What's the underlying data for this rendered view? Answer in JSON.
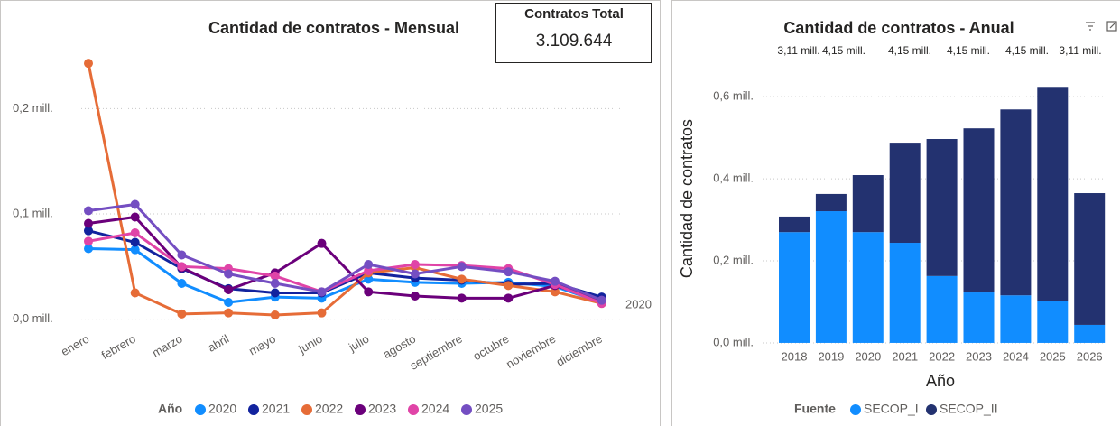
{
  "chart_data": [
    {
      "type": "line",
      "title": "Cantidad de contratos - Mensual",
      "categories": [
        "enero",
        "febrero",
        "marzo",
        "abril",
        "mayo",
        "junio",
        "julio",
        "agosto",
        "septiembre",
        "octubre",
        "noviembre",
        "diciembre"
      ],
      "series": [
        {
          "name": "2020",
          "color": "#118DFF",
          "values": [
            0.067,
            0.066,
            0.034,
            0.016,
            0.021,
            0.02,
            0.038,
            0.035,
            0.034,
            0.035,
            0.031,
            0.016
          ]
        },
        {
          "name": "2021",
          "color": "#12239E",
          "values": [
            0.084,
            0.073,
            0.048,
            0.029,
            0.025,
            0.025,
            0.044,
            0.039,
            0.037,
            0.033,
            0.034,
            0.021
          ]
        },
        {
          "name": "2022",
          "color": "#E66C37",
          "values": [
            0.243,
            0.025,
            0.005,
            0.006,
            0.004,
            0.006,
            0.044,
            0.049,
            0.038,
            0.032,
            0.026,
            0.015
          ]
        },
        {
          "name": "2023",
          "color": "#6B007B",
          "values": [
            0.091,
            0.097,
            0.049,
            0.028,
            0.044,
            0.072,
            0.026,
            0.022,
            0.02,
            0.02,
            0.032,
            0.018
          ]
        },
        {
          "name": "2024",
          "color": "#E044A7",
          "values": [
            0.074,
            0.082,
            0.05,
            0.048,
            0.041,
            0.026,
            0.046,
            0.052,
            0.051,
            0.048,
            0.033,
            0.015
          ]
        },
        {
          "name": "2025",
          "color": "#744EC2",
          "values": [
            0.103,
            0.109,
            0.061,
            0.043,
            0.034,
            0.026,
            0.052,
            0.043,
            0.05,
            0.045,
            0.036,
            0.018
          ]
        }
      ],
      "legend_title": "Año",
      "annotation": "2020",
      "ylim": [
        -0.014,
        0.256
      ],
      "yticks": [
        {
          "value": 0,
          "label": "0,0 mill."
        },
        {
          "value": 0.1,
          "label": "0,1 mill."
        },
        {
          "value": 0.2,
          "label": "0,2 mill."
        }
      ],
      "grid": true
    },
    {
      "type": "stacked_bar",
      "title": "Cantidad de contratos - Anual",
      "categories": [
        "2018",
        "2019",
        "2020",
        "2021",
        "2022",
        "2023",
        "2024",
        "2025",
        "2026"
      ],
      "series": [
        {
          "name": "SECOP_I",
          "color": "#118DFF",
          "values": [
            0.27,
            0.321,
            0.27,
            0.244,
            0.163,
            0.123,
            0.116,
            0.103,
            0.044
          ]
        },
        {
          "name": "SECOP_II",
          "color": "#233270",
          "values": [
            0.038,
            0.042,
            0.139,
            0.244,
            0.334,
            0.4,
            0.453,
            0.521,
            0.321
          ]
        }
      ],
      "top_labels": [
        "3,11 mill.",
        "4,15 mill.",
        "4,15 mill.",
        "4,15 mill.",
        "4,15 mill.",
        "3,11 mill."
      ],
      "legend_title": "Fuente",
      "x_label": "Año",
      "y_label": "Cantidad de contratos",
      "ylim": [
        -0.01,
        0.64
      ],
      "yticks": [
        {
          "value": 0,
          "label": "0,0 mill."
        },
        {
          "value": 0.2,
          "label": "0,2 mill."
        },
        {
          "value": 0.4,
          "label": "0,4 mill."
        },
        {
          "value": 0.6,
          "label": "0,6 mill."
        }
      ],
      "grid": true
    }
  ],
  "card": {
    "title": "Contratos Total",
    "value": "3.109.644"
  }
}
